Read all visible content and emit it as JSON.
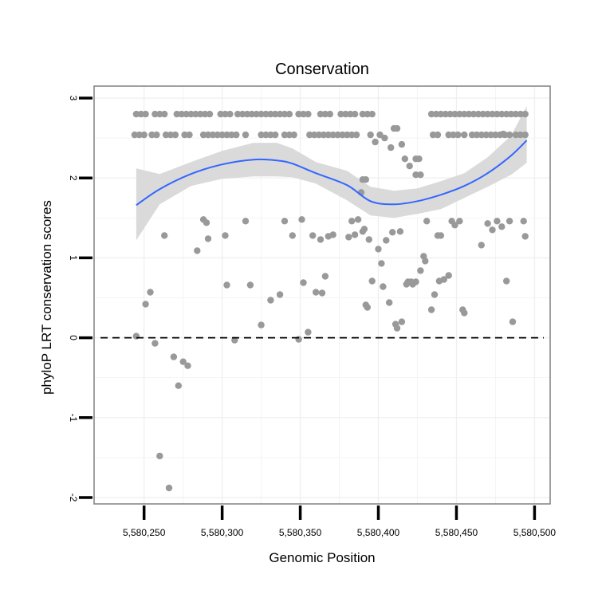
{
  "chart_data": {
    "type": "scatter",
    "title": "Conservation",
    "xlabel": "Genomic Position",
    "ylabel": "phyloP LRT conservation scores",
    "xlim": [
      5580218,
      5580510
    ],
    "ylim": [
      -2.08,
      3.15
    ],
    "x_ticks": [
      5580250,
      5580300,
      5580350,
      5580400,
      5580450,
      5580500
    ],
    "x_tick_labels": [
      "5,580,250",
      "5,580,300",
      "5,580,350",
      "5,580,400",
      "5,580,450",
      "5,580,500"
    ],
    "y_ticks": [
      -2,
      -1,
      0,
      1,
      2,
      3
    ],
    "y_tick_labels": [
      "-2",
      "-1",
      "0",
      "1",
      "2",
      "3"
    ],
    "grid": true,
    "colors": {
      "points": "#999999",
      "smooth_line": "#3366ff",
      "ribbon": "#d6d6d6",
      "grid": "#f0f0f0",
      "frame": "#808080",
      "reference_line": "#000000"
    },
    "reference_line": {
      "y": 0,
      "style": "dashed"
    },
    "smooth": {
      "method": "loess",
      "x": [
        5580245,
        5580260,
        5580280,
        5580300,
        5580320,
        5580335,
        5580345,
        5580360,
        5580380,
        5580395,
        5580410,
        5580425,
        5580440,
        5580455,
        5580470,
        5580485,
        5580495
      ],
      "y": [
        1.66,
        1.86,
        2.05,
        2.17,
        2.23,
        2.22,
        2.18,
        2.06,
        1.91,
        1.71,
        1.67,
        1.71,
        1.79,
        1.9,
        2.06,
        2.28,
        2.47
      ],
      "lower": [
        1.22,
        1.67,
        1.9,
        1.99,
        2.02,
        2.02,
        2.01,
        1.93,
        1.72,
        1.53,
        1.5,
        1.55,
        1.61,
        1.75,
        1.89,
        2.04,
        2.19
      ],
      "upper": [
        2.12,
        2.05,
        2.2,
        2.34,
        2.44,
        2.44,
        2.37,
        2.2,
        2.09,
        1.89,
        1.84,
        1.87,
        1.96,
        2.06,
        2.26,
        2.53,
        2.9
      ]
    },
    "points": [
      {
        "x": 5580245,
        "y": 2.8
      },
      {
        "x": 5580248,
        "y": 2.8
      },
      {
        "x": 5580251,
        "y": 2.8
      },
      {
        "x": 5580257,
        "y": 2.8
      },
      {
        "x": 5580260,
        "y": 2.8
      },
      {
        "x": 5580263,
        "y": 2.8
      },
      {
        "x": 5580271,
        "y": 2.8
      },
      {
        "x": 5580274,
        "y": 2.8
      },
      {
        "x": 5580277,
        "y": 2.8
      },
      {
        "x": 5580280,
        "y": 2.8
      },
      {
        "x": 5580283,
        "y": 2.8
      },
      {
        "x": 5580286,
        "y": 2.8
      },
      {
        "x": 5580289,
        "y": 2.8
      },
      {
        "x": 5580292,
        "y": 2.8
      },
      {
        "x": 5580299,
        "y": 2.8
      },
      {
        "x": 5580302,
        "y": 2.8
      },
      {
        "x": 5580305,
        "y": 2.8
      },
      {
        "x": 5580310,
        "y": 2.8
      },
      {
        "x": 5580313,
        "y": 2.8
      },
      {
        "x": 5580316,
        "y": 2.8
      },
      {
        "x": 5580319,
        "y": 2.8
      },
      {
        "x": 5580322,
        "y": 2.8
      },
      {
        "x": 5580325,
        "y": 2.8
      },
      {
        "x": 5580328,
        "y": 2.8
      },
      {
        "x": 5580331,
        "y": 2.8
      },
      {
        "x": 5580334,
        "y": 2.8
      },
      {
        "x": 5580337,
        "y": 2.8
      },
      {
        "x": 5580340,
        "y": 2.8
      },
      {
        "x": 5580343,
        "y": 2.8
      },
      {
        "x": 5580349,
        "y": 2.8
      },
      {
        "x": 5580352,
        "y": 2.8
      },
      {
        "x": 5580355,
        "y": 2.8
      },
      {
        "x": 5580363,
        "y": 2.8
      },
      {
        "x": 5580366,
        "y": 2.8
      },
      {
        "x": 5580369,
        "y": 2.8
      },
      {
        "x": 5580376,
        "y": 2.8
      },
      {
        "x": 5580379,
        "y": 2.8
      },
      {
        "x": 5580382,
        "y": 2.8
      },
      {
        "x": 5580385,
        "y": 2.8
      },
      {
        "x": 5580390,
        "y": 2.8
      },
      {
        "x": 5580393,
        "y": 2.8
      },
      {
        "x": 5580396,
        "y": 2.8
      },
      {
        "x": 5580434,
        "y": 2.8
      },
      {
        "x": 5580437,
        "y": 2.8
      },
      {
        "x": 5580440,
        "y": 2.8
      },
      {
        "x": 5580443,
        "y": 2.8
      },
      {
        "x": 5580446,
        "y": 2.8
      },
      {
        "x": 5580449,
        "y": 2.8
      },
      {
        "x": 5580452,
        "y": 2.8
      },
      {
        "x": 5580455,
        "y": 2.8
      },
      {
        "x": 5580458,
        "y": 2.8
      },
      {
        "x": 5580461,
        "y": 2.8
      },
      {
        "x": 5580464,
        "y": 2.8
      },
      {
        "x": 5580467,
        "y": 2.8
      },
      {
        "x": 5580470,
        "y": 2.8
      },
      {
        "x": 5580473,
        "y": 2.8
      },
      {
        "x": 5580476,
        "y": 2.8
      },
      {
        "x": 5580479,
        "y": 2.8
      },
      {
        "x": 5580482,
        "y": 2.8
      },
      {
        "x": 5580485,
        "y": 2.8
      },
      {
        "x": 5580488,
        "y": 2.8
      },
      {
        "x": 5580491,
        "y": 2.8
      },
      {
        "x": 5580494,
        "y": 2.8
      },
      {
        "x": 5580244,
        "y": 2.54
      },
      {
        "x": 5580247,
        "y": 2.54
      },
      {
        "x": 5580250,
        "y": 2.54
      },
      {
        "x": 5580255,
        "y": 2.54
      },
      {
        "x": 5580258,
        "y": 2.54
      },
      {
        "x": 5580264,
        "y": 2.54
      },
      {
        "x": 5580267,
        "y": 2.54
      },
      {
        "x": 5580270,
        "y": 2.54
      },
      {
        "x": 5580276,
        "y": 2.54
      },
      {
        "x": 5580279,
        "y": 2.54
      },
      {
        "x": 5580288,
        "y": 2.54
      },
      {
        "x": 5580291,
        "y": 2.54
      },
      {
        "x": 5580294,
        "y": 2.54
      },
      {
        "x": 5580297,
        "y": 2.54
      },
      {
        "x": 5580300,
        "y": 2.54
      },
      {
        "x": 5580303,
        "y": 2.54
      },
      {
        "x": 5580306,
        "y": 2.54
      },
      {
        "x": 5580309,
        "y": 2.54
      },
      {
        "x": 5580315,
        "y": 2.54
      },
      {
        "x": 5580325,
        "y": 2.54
      },
      {
        "x": 5580328,
        "y": 2.54
      },
      {
        "x": 5580331,
        "y": 2.54
      },
      {
        "x": 5580334,
        "y": 2.54
      },
      {
        "x": 5580340,
        "y": 2.54
      },
      {
        "x": 5580343,
        "y": 2.54
      },
      {
        "x": 5580346,
        "y": 2.54
      },
      {
        "x": 5580356,
        "y": 2.54
      },
      {
        "x": 5580359,
        "y": 2.54
      },
      {
        "x": 5580362,
        "y": 2.54
      },
      {
        "x": 5580365,
        "y": 2.54
      },
      {
        "x": 5580368,
        "y": 2.54
      },
      {
        "x": 5580371,
        "y": 2.54
      },
      {
        "x": 5580374,
        "y": 2.54
      },
      {
        "x": 5580377,
        "y": 2.54
      },
      {
        "x": 5580380,
        "y": 2.54
      },
      {
        "x": 5580383,
        "y": 2.54
      },
      {
        "x": 5580386,
        "y": 2.54
      },
      {
        "x": 5580395,
        "y": 2.54
      },
      {
        "x": 5580401,
        "y": 2.54
      },
      {
        "x": 5580435,
        "y": 2.54
      },
      {
        "x": 5580438,
        "y": 2.54
      },
      {
        "x": 5580445,
        "y": 2.54
      },
      {
        "x": 5580448,
        "y": 2.54
      },
      {
        "x": 5580451,
        "y": 2.54
      },
      {
        "x": 5580455,
        "y": 2.54
      },
      {
        "x": 5580460,
        "y": 2.54
      },
      {
        "x": 5580463,
        "y": 2.54
      },
      {
        "x": 5580466,
        "y": 2.54
      },
      {
        "x": 5580469,
        "y": 2.54
      },
      {
        "x": 5580472,
        "y": 2.54
      },
      {
        "x": 5580475,
        "y": 2.54
      },
      {
        "x": 5580478,
        "y": 2.54
      },
      {
        "x": 5580481,
        "y": 2.54
      },
      {
        "x": 5580484,
        "y": 2.54
      },
      {
        "x": 5580488,
        "y": 2.54
      },
      {
        "x": 5580491,
        "y": 2.54
      },
      {
        "x": 5580494,
        "y": 2.54
      },
      {
        "x": 5580398,
        "y": 2.45
      },
      {
        "x": 5580404,
        "y": 2.5
      },
      {
        "x": 5580408,
        "y": 2.38
      },
      {
        "x": 5580410,
        "y": 2.62
      },
      {
        "x": 5580412,
        "y": 2.62
      },
      {
        "x": 5580415,
        "y": 2.42
      },
      {
        "x": 5580417,
        "y": 2.24
      },
      {
        "x": 5580420,
        "y": 2.15
      },
      {
        "x": 5580424,
        "y": 2.24
      },
      {
        "x": 5580426,
        "y": 2.24
      },
      {
        "x": 5580424,
        "y": 2.04
      },
      {
        "x": 5580427,
        "y": 2.04
      },
      {
        "x": 5580480,
        "y": 2.55
      },
      {
        "x": 5580390,
        "y": 1.98
      },
      {
        "x": 5580392,
        "y": 1.98
      },
      {
        "x": 5580389,
        "y": 1.82
      },
      {
        "x": 5580245,
        "y": 0.02
      },
      {
        "x": 5580251,
        "y": 0.42
      },
      {
        "x": 5580254,
        "y": 0.57
      },
      {
        "x": 5580257,
        "y": -0.07
      },
      {
        "x": 5580260,
        "y": -1.48
      },
      {
        "x": 5580263,
        "y": 1.28
      },
      {
        "x": 5580266,
        "y": -1.88
      },
      {
        "x": 5580269,
        "y": -0.24
      },
      {
        "x": 5580272,
        "y": -0.6
      },
      {
        "x": 5580275,
        "y": -0.3
      },
      {
        "x": 5580278,
        "y": -0.35
      },
      {
        "x": 5580284,
        "y": 1.09
      },
      {
        "x": 5580288,
        "y": 1.48
      },
      {
        "x": 5580290,
        "y": 1.44
      },
      {
        "x": 5580291,
        "y": 1.24
      },
      {
        "x": 5580302,
        "y": 1.28
      },
      {
        "x": 5580303,
        "y": 0.66
      },
      {
        "x": 5580308,
        "y": -0.03
      },
      {
        "x": 5580315,
        "y": 1.46
      },
      {
        "x": 5580318,
        "y": 0.66
      },
      {
        "x": 5580325,
        "y": 0.16
      },
      {
        "x": 5580331,
        "y": 0.47
      },
      {
        "x": 5580337,
        "y": 0.54
      },
      {
        "x": 5580340,
        "y": 1.46
      },
      {
        "x": 5580345,
        "y": 1.28
      },
      {
        "x": 5580349,
        "y": -0.02
      },
      {
        "x": 5580351,
        "y": 1.48
      },
      {
        "x": 5580352,
        "y": 0.69
      },
      {
        "x": 5580355,
        "y": 0.07
      },
      {
        "x": 5580358,
        "y": 1.28
      },
      {
        "x": 5580360,
        "y": 0.57
      },
      {
        "x": 5580363,
        "y": 1.23
      },
      {
        "x": 5580364,
        "y": 0.56
      },
      {
        "x": 5580366,
        "y": 0.77
      },
      {
        "x": 5580368,
        "y": 1.27
      },
      {
        "x": 5580371,
        "y": 1.29
      },
      {
        "x": 5580381,
        "y": 1.26
      },
      {
        "x": 5580383,
        "y": 1.46
      },
      {
        "x": 5580385,
        "y": 1.29
      },
      {
        "x": 5580387,
        "y": 1.48
      },
      {
        "x": 5580390,
        "y": 1.33
      },
      {
        "x": 5580391,
        "y": 1.36
      },
      {
        "x": 5580392,
        "y": 0.41
      },
      {
        "x": 5580393,
        "y": 0.38
      },
      {
        "x": 5580394,
        "y": 1.23
      },
      {
        "x": 5580396,
        "y": 0.71
      },
      {
        "x": 5580400,
        "y": 1.11
      },
      {
        "x": 5580402,
        "y": 0.93
      },
      {
        "x": 5580403,
        "y": 0.64
      },
      {
        "x": 5580405,
        "y": 1.22
      },
      {
        "x": 5580407,
        "y": 0.44
      },
      {
        "x": 5580409,
        "y": 1.32
      },
      {
        "x": 5580411,
        "y": 0.17
      },
      {
        "x": 5580412,
        "y": 0.12
      },
      {
        "x": 5580414,
        "y": 1.33
      },
      {
        "x": 5580415,
        "y": 0.2
      },
      {
        "x": 5580418,
        "y": 0.67
      },
      {
        "x": 5580419,
        "y": 0.7
      },
      {
        "x": 5580421,
        "y": 0.7
      },
      {
        "x": 5580422,
        "y": 0.67
      },
      {
        "x": 5580424,
        "y": 0.7
      },
      {
        "x": 5580427,
        "y": 0.84
      },
      {
        "x": 5580429,
        "y": 1.02
      },
      {
        "x": 5580430,
        "y": 0.96
      },
      {
        "x": 5580431,
        "y": 1.46
      },
      {
        "x": 5580434,
        "y": 0.35
      },
      {
        "x": 5580436,
        "y": 0.54
      },
      {
        "x": 5580438,
        "y": 1.28
      },
      {
        "x": 5580439,
        "y": 0.71
      },
      {
        "x": 5580440,
        "y": 1.28
      },
      {
        "x": 5580442,
        "y": 0.73
      },
      {
        "x": 5580445,
        "y": 0.78
      },
      {
        "x": 5580447,
        "y": 1.46
      },
      {
        "x": 5580449,
        "y": 1.41
      },
      {
        "x": 5580452,
        "y": 1.46
      },
      {
        "x": 5580454,
        "y": 0.35
      },
      {
        "x": 5580455,
        "y": 0.31
      },
      {
        "x": 5580466,
        "y": 1.16
      },
      {
        "x": 5580470,
        "y": 1.43
      },
      {
        "x": 5580473,
        "y": 1.35
      },
      {
        "x": 5580476,
        "y": 1.46
      },
      {
        "x": 5580479,
        "y": 1.39
      },
      {
        "x": 5580482,
        "y": 0.71
      },
      {
        "x": 5580484,
        "y": 1.46
      },
      {
        "x": 5580486,
        "y": 0.2
      },
      {
        "x": 5580493,
        "y": 1.46
      },
      {
        "x": 5580494,
        "y": 1.27
      }
    ]
  }
}
